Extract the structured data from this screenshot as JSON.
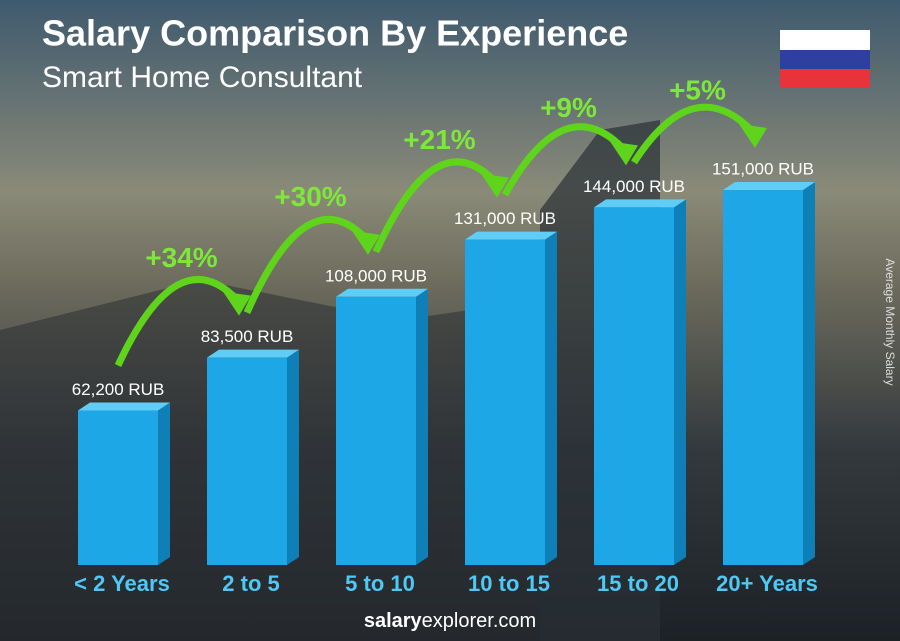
{
  "chart_data": {
    "type": "bar",
    "title": "Salary Comparison By Experience",
    "subtitle": "Smart Home Consultant",
    "y_axis_label": "Average Monthly Salary",
    "categories": [
      "< 2 Years",
      "2 to 5",
      "5 to 10",
      "10 to 15",
      "15 to 20",
      "20+ Years"
    ],
    "values": [
      62200,
      83500,
      108000,
      131000,
      144000,
      151000
    ],
    "value_labels": [
      "62,200 RUB",
      "83,500 RUB",
      "108,000 RUB",
      "131,000 RUB",
      "144,000 RUB",
      "151,000 RUB"
    ],
    "increases": [
      "+34%",
      "+30%",
      "+21%",
      "+9%",
      "+5%"
    ],
    "color": "#1ea7e6",
    "footer": {
      "brand": "salary",
      "rest": "explorer.com"
    }
  }
}
